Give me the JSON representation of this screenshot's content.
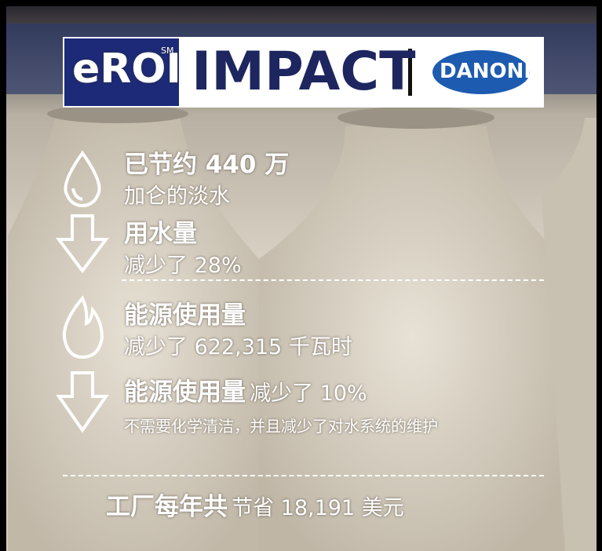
{
  "header": {
    "logo": "eROI",
    "logo_mark": "SM",
    "title": "IMPACT",
    "brand": "DANONE"
  },
  "items": [
    {
      "headline": "已节约 440 万",
      "detail": "加仑的淡水"
    },
    {
      "headline": "用水量",
      "detail": "减少了 28%"
    },
    {
      "headline": "能源使用量",
      "detail": "减少了 622,315 千瓦时"
    },
    {
      "headline": "能源使用量",
      "headline_rest": "减少了 10%",
      "detail": "不需要化学清洁，并且减少了对水系统的维护"
    }
  ],
  "footer": {
    "bold": "工厂每年共",
    "rest": "节省 18,191 美元"
  }
}
